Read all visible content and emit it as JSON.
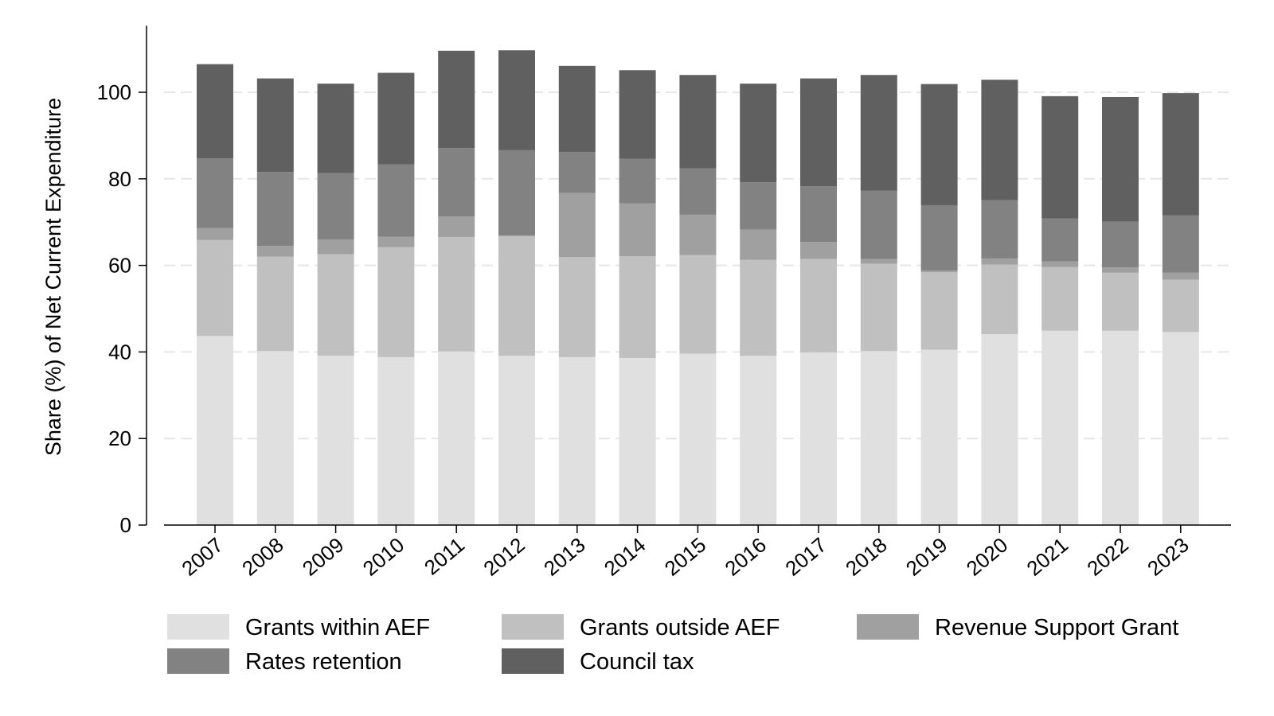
{
  "chart_data": {
    "type": "bar",
    "stacked": true,
    "title": "",
    "xlabel": "",
    "ylabel": "Share (%) of Net Current Expenditure",
    "ylim": [
      0,
      115
    ],
    "yticks": [
      0,
      20,
      40,
      60,
      80,
      100
    ],
    "grid": "horizontal dashed",
    "legend_position": "bottom",
    "categories": [
      "2007",
      "2008",
      "2009",
      "2010",
      "2011",
      "2012",
      "2013",
      "2014",
      "2015",
      "2016",
      "2017",
      "2018",
      "2019",
      "2020",
      "2021",
      "2022",
      "2023"
    ],
    "series": [
      {
        "name": "Grants within AEF",
        "color": "#e0e0e0",
        "values": [
          43.7,
          40.2,
          39.1,
          38.8,
          40.1,
          39.1,
          38.8,
          38.6,
          39.6,
          39.1,
          39.9,
          40.2,
          40.5,
          44.1,
          44.9,
          44.9,
          44.6
        ]
      },
      {
        "name": "Grants outside AEF",
        "color": "#c0c0c0",
        "values": [
          22.2,
          21.8,
          23.5,
          25.4,
          26.4,
          27.6,
          23.1,
          23.5,
          22.8,
          22.2,
          21.6,
          20.2,
          17.9,
          16.1,
          14.7,
          13.4,
          12.1
        ]
      },
      {
        "name": "Revenue Support Grant",
        "color": "#a0a0a0",
        "values": [
          2.7,
          2.5,
          3.4,
          2.4,
          4.8,
          0.3,
          14.8,
          12.2,
          9.3,
          7.0,
          3.9,
          1.1,
          0.4,
          1.4,
          1.3,
          1.2,
          1.6
        ]
      },
      {
        "name": "Rates retention",
        "color": "#828282",
        "values": [
          16.1,
          17.1,
          15.3,
          16.7,
          15.8,
          19.6,
          9.5,
          10.3,
          10.7,
          10.9,
          12.9,
          15.8,
          15.1,
          13.5,
          9.9,
          10.6,
          13.3
        ]
      },
      {
        "name": "Council tax",
        "color": "#606060",
        "values": [
          21.8,
          21.6,
          20.7,
          21.2,
          22.5,
          23.1,
          19.9,
          20.5,
          21.6,
          22.8,
          24.9,
          26.7,
          28.0,
          27.8,
          28.3,
          28.8,
          28.2
        ]
      }
    ]
  }
}
